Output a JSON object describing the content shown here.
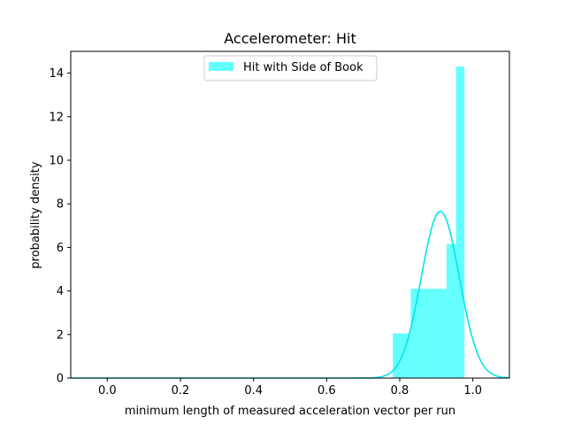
{
  "chart_data": {
    "type": "histogram",
    "title": "Accelerometer: Hit",
    "xlabel": "minimum length of measured acceleration vector per run",
    "ylabel": "probability density",
    "xlim": [
      -0.1,
      1.1
    ],
    "ylim": [
      0,
      15
    ],
    "xticks": [
      0.0,
      0.2,
      0.4,
      0.6,
      0.8,
      1.0
    ],
    "xtick_labels": [
      "0.0",
      "0.2",
      "0.4",
      "0.6",
      "0.8",
      "1.0"
    ],
    "yticks": [
      0,
      2,
      4,
      6,
      8,
      10,
      12,
      14
    ],
    "ytick_labels": [
      "0",
      "2",
      "4",
      "6",
      "8",
      "10",
      "12",
      "14"
    ],
    "grid": false,
    "legend_position": "upper center",
    "colors": {
      "histogram": "#00ffff",
      "histogram_alpha": 0.6,
      "curve": "#00e5ee",
      "axes": "#000000"
    },
    "series": [
      {
        "name": "Hit with Side of Book",
        "kind": "histogram",
        "bins": [
          {
            "x0": 0.781,
            "x1": 0.83,
            "density": 2.05
          },
          {
            "x0": 0.83,
            "x1": 0.879,
            "density": 4.1
          },
          {
            "x0": 0.879,
            "x1": 0.928,
            "density": 4.1
          },
          {
            "x0": 0.928,
            "x1": 0.954,
            "density": 6.15
          },
          {
            "x0": 0.954,
            "x1": 0.977,
            "density": 14.3
          }
        ]
      },
      {
        "kind": "normal_pdf_curve",
        "mean": 0.911,
        "std": 0.052,
        "peak": 7.65
      }
    ]
  }
}
